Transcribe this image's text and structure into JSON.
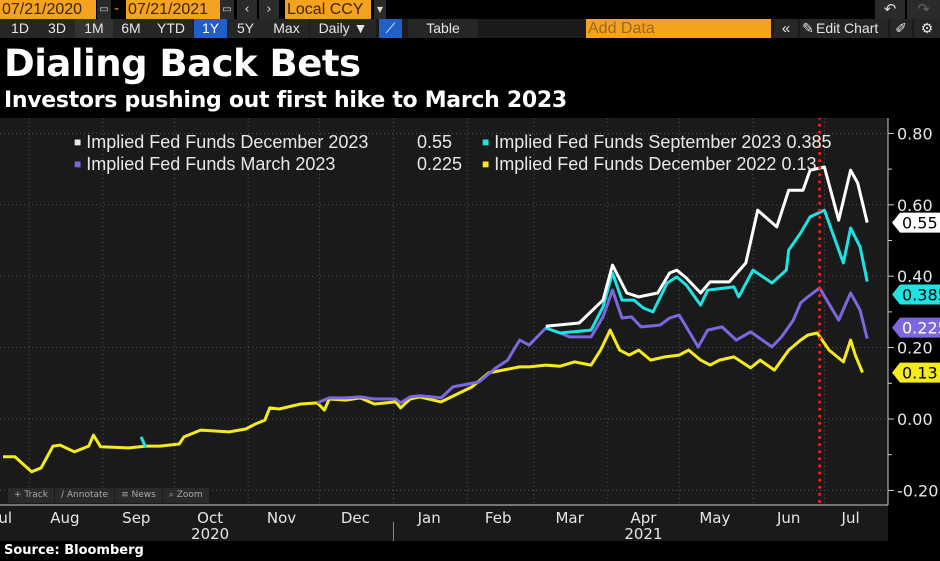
{
  "toolbar": {
    "start_date": "07/21/2020",
    "end_date": "07/21/2021",
    "dash": "-",
    "currency": "Local CCY",
    "ranges": [
      "1D",
      "3D",
      "1M",
      "6M",
      "YTD",
      "1Y",
      "5Y",
      "Max"
    ],
    "selected_range": "1Y",
    "frequency": "Daily ▼",
    "table_label": "Table",
    "add_data_placeholder": "Add Data",
    "edit_chart_label": "Edit Chart",
    "icons": [
      "calendar-icon",
      "chevron-left-icon",
      "chevron-right-icon",
      "dropdown-icon",
      "line-chart-icon",
      "collapse-icon",
      "pencil-icon",
      "edit-note-icon",
      "gear-icon",
      "undo-icon",
      "redo-icon"
    ]
  },
  "header": {
    "title": "Dialing Back Bets",
    "subtitle": "Investors pushing out first hike to March 2023"
  },
  "mini_toolbar": [
    "Track",
    "Annotate",
    "News",
    "Zoom"
  ],
  "source": "Source: Bloomberg",
  "colors": {
    "white": "#ffffff",
    "cyan": "#1ee3e3",
    "purple": "#7b68e0",
    "yellow": "#f4ea1c",
    "marker": "#ff1a1a",
    "plot_bg": "#1a1a1a"
  },
  "chart_data": {
    "type": "line",
    "ylim": [
      -0.2,
      0.8
    ],
    "yticks": [
      "0.80",
      "0.60",
      "0.40",
      "0.20",
      "0.00",
      "-0.20"
    ],
    "ytick_values": [
      0.8,
      0.6,
      0.4,
      0.2,
      0.0,
      -0.2
    ],
    "x_range": [
      "2020-07-21",
      "2021-07-21"
    ],
    "month_labels": [
      [
        "Jul",
        "2020-07-21"
      ],
      [
        "Aug",
        "2020-08-16"
      ],
      [
        "Sep",
        "2020-09-15"
      ],
      [
        "Oct",
        "2020-10-16"
      ],
      [
        "Nov",
        "2020-11-15"
      ],
      [
        "Dec",
        "2020-12-16"
      ],
      [
        "Jan",
        "2021-01-16"
      ],
      [
        "Feb",
        "2021-02-14"
      ],
      [
        "Mar",
        "2021-03-16"
      ],
      [
        "Apr",
        "2021-04-16"
      ],
      [
        "May",
        "2021-05-16"
      ],
      [
        "Jun",
        "2021-06-16"
      ],
      [
        "Jul",
        "2021-07-12"
      ]
    ],
    "year_labels": [
      [
        "2020",
        "2020-10-16"
      ],
      [
        "2021",
        "2021-04-16"
      ]
    ],
    "grid": true,
    "vline_date": "2021-06-29",
    "legend_placement": "top",
    "series": [
      {
        "name": "Implied Fed Funds December 2023",
        "last": "0.55",
        "color": "#ffffff",
        "points": [
          [
            "2021-03-06",
            0.26
          ],
          [
            "2021-03-20",
            0.269
          ],
          [
            "2021-03-30",
            0.333
          ],
          [
            "2021-04-03",
            0.431
          ],
          [
            "2021-04-09",
            0.353
          ],
          [
            "2021-04-14",
            0.342
          ],
          [
            "2021-04-22",
            0.353
          ],
          [
            "2021-04-27",
            0.409
          ],
          [
            "2021-04-30",
            0.417
          ],
          [
            "2021-05-04",
            0.395
          ],
          [
            "2021-05-10",
            0.353
          ],
          [
            "2021-05-14",
            0.384
          ],
          [
            "2021-05-22",
            0.384
          ],
          [
            "2021-05-29",
            0.437
          ],
          [
            "2021-06-03",
            0.585
          ],
          [
            "2021-06-11",
            0.538
          ],
          [
            "2021-06-16",
            0.641
          ],
          [
            "2021-06-22",
            0.641
          ],
          [
            "2021-06-25",
            0.697
          ],
          [
            "2021-07-01",
            0.706
          ],
          [
            "2021-07-07",
            0.557
          ],
          [
            "2021-07-12",
            0.697
          ],
          [
            "2021-07-15",
            0.661
          ],
          [
            "2021-07-19",
            0.55
          ]
        ]
      },
      {
        "name": "Implied Fed Funds September 2023",
        "last": "0.385",
        "color": "#1ee3e3",
        "points": [
          [
            "2020-09-17",
            -0.05
          ],
          [
            "2020-09-19",
            -0.08
          ],
          null,
          [
            "2021-03-06",
            0.255
          ],
          [
            "2021-03-12",
            0.241
          ],
          [
            "2021-03-17",
            0.244
          ],
          [
            "2021-03-25",
            0.249
          ],
          [
            "2021-03-30",
            0.314
          ],
          [
            "2021-04-03",
            0.409
          ],
          [
            "2021-04-07",
            0.333
          ],
          [
            "2021-04-12",
            0.333
          ],
          [
            "2021-04-16",
            0.311
          ],
          [
            "2021-04-20",
            0.3
          ],
          [
            "2021-04-26",
            0.381
          ],
          [
            "2021-04-30",
            0.398
          ],
          [
            "2021-05-04",
            0.375
          ],
          [
            "2021-05-10",
            0.319
          ],
          [
            "2021-05-13",
            0.361
          ],
          [
            "2021-05-24",
            0.37
          ],
          [
            "2021-05-26",
            0.342
          ],
          [
            "2021-06-01",
            0.417
          ],
          [
            "2021-06-09",
            0.381
          ],
          [
            "2021-06-15",
            0.417
          ],
          [
            "2021-06-16",
            0.473
          ],
          [
            "2021-06-21",
            0.521
          ],
          [
            "2021-06-25",
            0.566
          ],
          [
            "2021-07-01",
            0.585
          ],
          [
            "2021-07-09",
            0.437
          ],
          [
            "2021-07-12",
            0.535
          ],
          [
            "2021-07-16",
            0.482
          ],
          [
            "2021-07-19",
            0.385
          ]
        ]
      },
      {
        "name": "Implied Fed Funds March 2023",
        "last": "0.225",
        "color": "#7b68e0",
        "points": [
          [
            "2020-11-30",
            0.045
          ],
          [
            "2020-12-05",
            0.059
          ],
          [
            "2020-12-12",
            0.059
          ],
          [
            "2020-12-18",
            0.062
          ],
          [
            "2020-12-24",
            0.056
          ],
          [
            "2021-01-02",
            0.056
          ],
          [
            "2021-01-04",
            0.045
          ],
          [
            "2021-01-08",
            0.062
          ],
          [
            "2021-01-12",
            0.065
          ],
          [
            "2021-01-21",
            0.059
          ],
          [
            "2021-01-26",
            0.09
          ],
          [
            "2021-02-06",
            0.104
          ],
          [
            "2021-02-13",
            0.143
          ],
          [
            "2021-02-18",
            0.165
          ],
          [
            "2021-02-23",
            0.221
          ],
          [
            "2021-02-27",
            0.207
          ],
          [
            "2021-03-06",
            0.255
          ],
          [
            "2021-03-12",
            0.241
          ],
          [
            "2021-03-16",
            0.23
          ],
          [
            "2021-03-25",
            0.23
          ],
          [
            "2021-03-30",
            0.286
          ],
          [
            "2021-04-03",
            0.361
          ],
          [
            "2021-04-07",
            0.283
          ],
          [
            "2021-04-11",
            0.286
          ],
          [
            "2021-04-15",
            0.258
          ],
          [
            "2021-04-23",
            0.263
          ],
          [
            "2021-04-27",
            0.283
          ],
          [
            "2021-05-01",
            0.291
          ],
          [
            "2021-05-04",
            0.258
          ],
          [
            "2021-05-09",
            0.202
          ],
          [
            "2021-05-13",
            0.249
          ],
          [
            "2021-05-19",
            0.258
          ],
          [
            "2021-05-25",
            0.221
          ],
          [
            "2021-05-31",
            0.244
          ],
          [
            "2021-06-09",
            0.202
          ],
          [
            "2021-06-13",
            0.23
          ],
          [
            "2021-06-18",
            0.277
          ],
          [
            "2021-06-21",
            0.325
          ],
          [
            "2021-06-24",
            0.342
          ],
          [
            "2021-06-29",
            0.367
          ],
          [
            "2021-07-07",
            0.277
          ],
          [
            "2021-07-12",
            0.353
          ],
          [
            "2021-07-16",
            0.305
          ],
          [
            "2021-07-19",
            0.225
          ]
        ]
      },
      {
        "name": "Implied Fed Funds December 2022",
        "last": "0.13",
        "color": "#f4ea1c",
        "points": [
          [
            "2020-07-21",
            -0.106
          ],
          [
            "2020-07-26",
            -0.106
          ],
          [
            "2020-08-02",
            -0.148
          ],
          [
            "2020-08-06",
            -0.137
          ],
          [
            "2020-08-11",
            -0.076
          ],
          [
            "2020-08-14",
            -0.073
          ],
          [
            "2020-08-20",
            -0.092
          ],
          [
            "2020-08-26",
            -0.076
          ],
          [
            "2020-08-28",
            -0.045
          ],
          [
            "2020-08-31",
            -0.078
          ],
          [
            "2020-09-12",
            -0.081
          ],
          [
            "2020-09-19",
            -0.076
          ],
          [
            "2020-09-25",
            -0.076
          ],
          [
            "2020-10-03",
            -0.07
          ],
          [
            "2020-10-05",
            -0.05
          ],
          [
            "2020-10-12",
            -0.031
          ],
          [
            "2020-10-24",
            -0.036
          ],
          [
            "2020-10-31",
            -0.028
          ],
          [
            "2020-11-04",
            -0.014
          ],
          [
            "2020-11-08",
            -0.003
          ],
          [
            "2020-11-10",
            0.031
          ],
          [
            "2020-11-14",
            0.028
          ],
          [
            "2020-11-23",
            0.042
          ],
          [
            "2020-11-30",
            0.045
          ],
          [
            "2020-12-03",
            0.025
          ],
          [
            "2020-12-05",
            0.056
          ],
          [
            "2020-12-12",
            0.053
          ],
          [
            "2020-12-18",
            0.059
          ],
          [
            "2020-12-24",
            0.042
          ],
          [
            "2021-01-02",
            0.048
          ],
          [
            "2021-01-04",
            0.031
          ],
          [
            "2021-01-08",
            0.056
          ],
          [
            "2021-01-12",
            0.062
          ],
          [
            "2021-01-21",
            0.048
          ],
          [
            "2021-02-03",
            0.09
          ],
          [
            "2021-02-10",
            0.129
          ],
          [
            "2021-02-23",
            0.146
          ],
          [
            "2021-02-27",
            0.146
          ],
          [
            "2021-03-06",
            0.151
          ],
          [
            "2021-03-12",
            0.148
          ],
          [
            "2021-03-18",
            0.16
          ],
          [
            "2021-03-25",
            0.151
          ],
          [
            "2021-03-29",
            0.193
          ],
          [
            "2021-04-02",
            0.249
          ],
          [
            "2021-04-06",
            0.193
          ],
          [
            "2021-04-10",
            0.179
          ],
          [
            "2021-04-14",
            0.193
          ],
          [
            "2021-04-19",
            0.165
          ],
          [
            "2021-04-25",
            0.174
          ],
          [
            "2021-05-01",
            0.179
          ],
          [
            "2021-05-05",
            0.193
          ],
          [
            "2021-05-10",
            0.165
          ],
          [
            "2021-05-14",
            0.151
          ],
          [
            "2021-05-18",
            0.165
          ],
          [
            "2021-05-24",
            0.174
          ],
          [
            "2021-05-31",
            0.143
          ],
          [
            "2021-06-04",
            0.165
          ],
          [
            "2021-06-10",
            0.137
          ],
          [
            "2021-06-16",
            0.193
          ],
          [
            "2021-06-21",
            0.221
          ],
          [
            "2021-06-24",
            0.235
          ],
          [
            "2021-06-28",
            0.241
          ],
          [
            "2021-07-03",
            0.193
          ],
          [
            "2021-07-09",
            0.16
          ],
          [
            "2021-07-12",
            0.221
          ],
          [
            "2021-07-14",
            0.179
          ],
          [
            "2021-07-17",
            0.13
          ]
        ]
      }
    ]
  }
}
